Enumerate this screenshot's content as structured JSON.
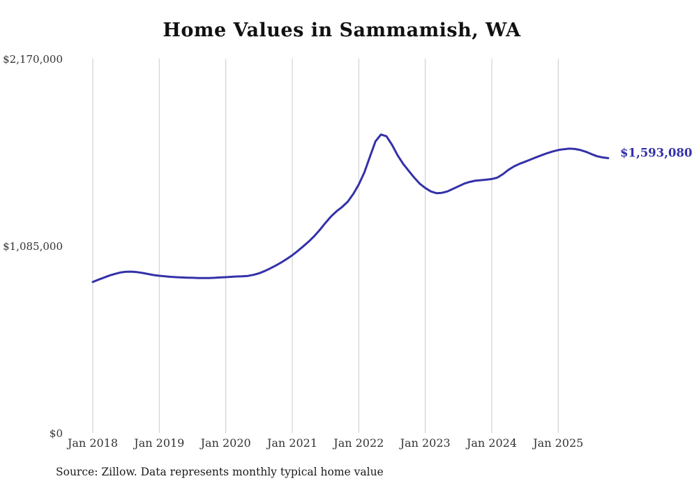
{
  "title": "Home Values in Sammamish, WA",
  "source_note": "Source: Zillow. Data represents monthly typical home value",
  "end_label": "$1,593,080",
  "colors": {
    "line": "#3431a8",
    "grid": "#c9c9c9",
    "title_text": "#111111",
    "tick_text": "#333333",
    "end_label_text": "#3431a8"
  },
  "y_axis": {
    "ticks": [
      "$2,170,000",
      "$1,085,000",
      "$0"
    ]
  },
  "x_axis": {
    "ticks": [
      "Jan 2018",
      "Jan 2019",
      "Jan 2020",
      "Jan 2021",
      "Jan 2022",
      "Jan 2023",
      "Jan 2024",
      "Jan 2025"
    ]
  },
  "chart_data": {
    "type": "line",
    "title": "Home Values in Sammamish, WA",
    "xlabel": "",
    "ylabel": "",
    "x_start": "2018-01",
    "x_end": "2025-10",
    "frequency": "monthly",
    "ylim": [
      0,
      2170000
    ],
    "y_ticks": [
      0,
      1085000,
      2170000
    ],
    "grid": "vertical",
    "legend": "none",
    "end_value": 1593080,
    "series": [
      {
        "name": "Typical home value ($)",
        "values": [
          875000,
          888000,
          900000,
          912000,
          922000,
          930000,
          934000,
          935000,
          932000,
          927000,
          921000,
          915000,
          911000,
          908000,
          905000,
          903000,
          901000,
          900000,
          899000,
          898000,
          898000,
          898000,
          899000,
          901000,
          903000,
          905000,
          907000,
          908000,
          910000,
          916000,
          925000,
          938000,
          953000,
          970000,
          988000,
          1008000,
          1030000,
          1055000,
          1082000,
          1110000,
          1142000,
          1178000,
          1218000,
          1255000,
          1285000,
          1310000,
          1340000,
          1385000,
          1440000,
          1510000,
          1600000,
          1690000,
          1730000,
          1720000,
          1670000,
          1610000,
          1560000,
          1520000,
          1480000,
          1445000,
          1420000,
          1400000,
          1390000,
          1392000,
          1400000,
          1415000,
          1430000,
          1445000,
          1455000,
          1462000,
          1465000,
          1468000,
          1472000,
          1480000,
          1500000,
          1525000,
          1545000,
          1560000,
          1572000,
          1585000,
          1598000,
          1610000,
          1622000,
          1632000,
          1640000,
          1645000,
          1648000,
          1646000,
          1640000,
          1630000,
          1616000,
          1604000,
          1597000,
          1593080
        ]
      }
    ]
  }
}
